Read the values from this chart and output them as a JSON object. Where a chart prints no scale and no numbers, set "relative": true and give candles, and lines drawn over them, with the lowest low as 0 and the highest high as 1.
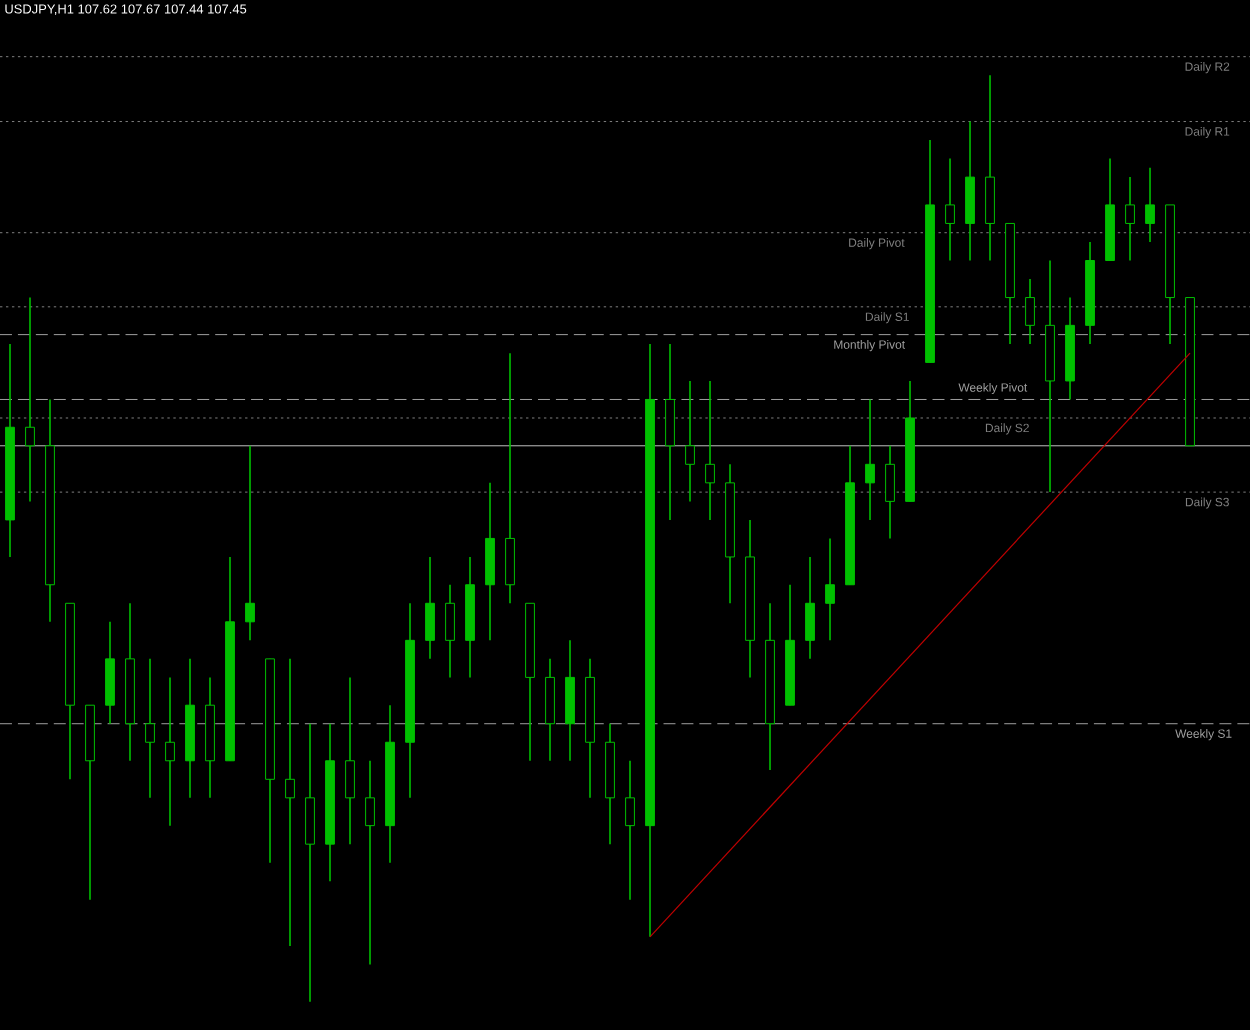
{
  "chart_data": {
    "type": "candlestick",
    "title": "USDJPY,H1 107.62 107.67 107.44 107.45",
    "relative": true,
    "tick_labels": false,
    "color": "#00c000",
    "categories": [
      null,
      null,
      null,
      null,
      null,
      null,
      null,
      null,
      null,
      null,
      null,
      null,
      null,
      null,
      null,
      null,
      null,
      null,
      null,
      null,
      null,
      null,
      null,
      null,
      null,
      null,
      null,
      null,
      null,
      null,
      null,
      null,
      null,
      null,
      null,
      null,
      null,
      null,
      null,
      null,
      null,
      null,
      null,
      null,
      null,
      null,
      null,
      null,
      null,
      null,
      null,
      null,
      null,
      null,
      null,
      null,
      null,
      null,
      null,
      null
    ],
    "ohlc": [
      [
        0.52,
        0.71,
        0.48,
        0.62
      ],
      [
        0.62,
        0.76,
        0.54,
        0.6
      ],
      [
        0.6,
        0.65,
        0.41,
        0.45
      ],
      [
        0.43,
        0.43,
        0.24,
        0.32
      ],
      [
        0.32,
        0.32,
        0.11,
        0.26
      ],
      [
        0.32,
        0.41,
        0.3,
        0.37
      ],
      [
        0.37,
        0.43,
        0.26,
        0.3
      ],
      [
        0.3,
        0.37,
        0.22,
        0.28
      ],
      [
        0.28,
        0.35,
        0.19,
        0.26
      ],
      [
        0.26,
        0.37,
        0.22,
        0.32
      ],
      [
        0.32,
        0.35,
        0.22,
        0.26
      ],
      [
        0.26,
        0.48,
        0.26,
        0.41
      ],
      [
        0.41,
        0.6,
        0.39,
        0.43
      ],
      [
        0.37,
        0.37,
        0.15,
        0.24
      ],
      [
        0.24,
        0.37,
        0.06,
        0.22
      ],
      [
        0.22,
        0.3,
        0.0,
        0.17
      ],
      [
        0.17,
        0.3,
        0.13,
        0.26
      ],
      [
        0.26,
        0.35,
        0.17,
        0.22
      ],
      [
        0.22,
        0.26,
        0.04,
        0.19
      ],
      [
        0.19,
        0.32,
        0.15,
        0.28
      ],
      [
        0.28,
        0.43,
        0.22,
        0.39
      ],
      [
        0.39,
        0.48,
        0.37,
        0.43
      ],
      [
        0.43,
        0.45,
        0.35,
        0.39
      ],
      [
        0.39,
        0.48,
        0.35,
        0.45
      ],
      [
        0.45,
        0.56,
        0.39,
        0.5
      ],
      [
        0.5,
        0.7,
        0.43,
        0.45
      ],
      [
        0.43,
        0.43,
        0.26,
        0.35
      ],
      [
        0.35,
        0.37,
        0.26,
        0.3
      ],
      [
        0.3,
        0.39,
        0.26,
        0.35
      ],
      [
        0.35,
        0.37,
        0.22,
        0.28
      ],
      [
        0.28,
        0.3,
        0.17,
        0.22
      ],
      [
        0.22,
        0.26,
        0.11,
        0.19
      ],
      [
        0.19,
        0.71,
        0.07,
        0.65
      ],
      [
        0.65,
        0.71,
        0.52,
        0.6
      ],
      [
        0.6,
        0.67,
        0.54,
        0.58
      ],
      [
        0.58,
        0.67,
        0.52,
        0.56
      ],
      [
        0.56,
        0.58,
        0.43,
        0.48
      ],
      [
        0.48,
        0.52,
        0.35,
        0.39
      ],
      [
        0.39,
        0.43,
        0.25,
        0.3
      ],
      [
        0.32,
        0.45,
        0.32,
        0.39
      ],
      [
        0.39,
        0.48,
        0.37,
        0.43
      ],
      [
        0.43,
        0.5,
        0.39,
        0.45
      ],
      [
        0.45,
        0.6,
        0.45,
        0.56
      ],
      [
        0.56,
        0.65,
        0.52,
        0.58
      ],
      [
        0.58,
        0.6,
        0.5,
        0.54
      ],
      [
        0.54,
        0.67,
        0.54,
        0.63
      ],
      [
        0.69,
        0.93,
        0.69,
        0.86
      ],
      [
        0.86,
        0.91,
        0.8,
        0.84
      ],
      [
        0.84,
        0.95,
        0.8,
        0.89
      ],
      [
        0.89,
        1.0,
        0.8,
        0.84
      ],
      [
        0.84,
        0.84,
        0.71,
        0.76
      ],
      [
        0.76,
        0.78,
        0.71,
        0.73
      ],
      [
        0.73,
        0.8,
        0.55,
        0.67
      ],
      [
        0.67,
        0.76,
        0.65,
        0.73
      ],
      [
        0.73,
        0.82,
        0.71,
        0.8
      ],
      [
        0.8,
        0.91,
        0.8,
        0.86
      ],
      [
        0.86,
        0.89,
        0.8,
        0.84
      ],
      [
        0.84,
        0.9,
        0.82,
        0.86
      ],
      [
        0.86,
        0.86,
        0.71,
        0.76
      ],
      [
        0.76,
        0.76,
        0.6,
        0.6
      ]
    ],
    "series": [
      {
        "type": "line",
        "values": [
          null,
          null,
          null,
          null,
          null,
          null,
          null,
          null,
          null,
          null,
          null,
          null,
          null,
          null,
          null,
          null,
          null,
          null,
          null,
          null,
          null,
          null,
          null,
          null,
          null,
          null,
          null,
          null,
          null,
          null,
          null,
          null,
          0.07,
          null,
          null,
          null,
          null,
          null,
          null,
          null,
          null,
          null,
          null,
          null,
          null,
          null,
          null,
          null,
          null,
          null,
          null,
          null,
          null,
          null,
          null,
          null,
          null,
          null,
          null,
          0.7
        ],
        "color": "#c00000"
      }
    ],
    "ref_lines": [
      {
        "axis": "y",
        "value": 1.02,
        "label": "Daily R2",
        "color": "#808080",
        "line_style": "dotted"
      },
      {
        "axis": "y",
        "value": 0.95,
        "label": "Daily R1",
        "color": "#808080",
        "line_style": "dotted"
      },
      {
        "axis": "y",
        "value": 0.83,
        "label": "Daily Pivot",
        "color": "#808080",
        "line_style": "dotted"
      },
      {
        "axis": "y",
        "value": 0.75,
        "label": "Daily S1",
        "color": "#808080",
        "line_style": "dotted"
      },
      {
        "axis": "y",
        "value": 0.72,
        "label": "Monthly Pivot",
        "color": "#a0a0a0",
        "line_style": "dashed"
      },
      {
        "axis": "y",
        "value": 0.65,
        "label": "Weekly Pivot",
        "color": "#a0a0a0",
        "line_style": "dashed"
      },
      {
        "axis": "y",
        "value": 0.63,
        "label": "Daily S2",
        "color": "#808080",
        "line_style": "dotted"
      },
      {
        "axis": "y",
        "value": 0.6,
        "color": "#c0c0c0",
        "line_style": "solid"
      },
      {
        "axis": "y",
        "value": 0.55,
        "label": "Daily S3",
        "color": "#808080",
        "line_style": "dotted"
      },
      {
        "axis": "y",
        "value": 0.3,
        "label": "Weekly S1",
        "color": "#a0a0a0",
        "line_style": "dashed"
      }
    ]
  }
}
